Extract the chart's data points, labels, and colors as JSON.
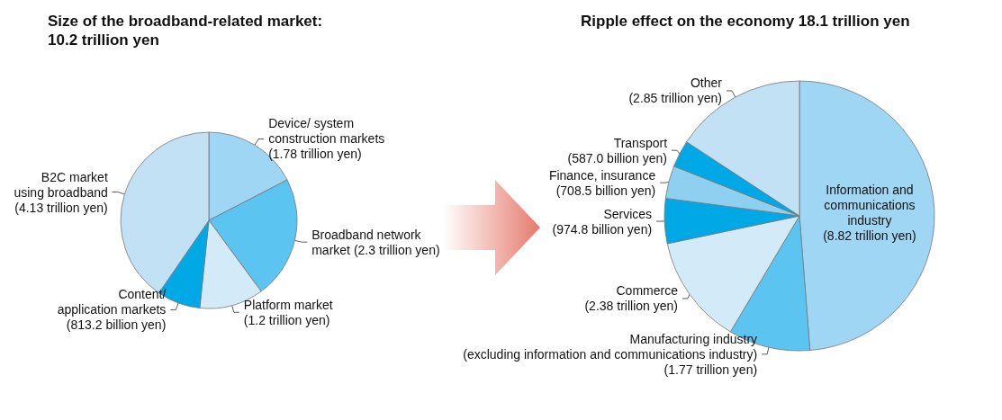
{
  "chart_data": [
    {
      "type": "pie",
      "title": "Size of the broadband-related market:\n10.2 trillion yen",
      "categories": [
        "Device/ system\nconstruction markets\n(1.78 trillion yen)",
        "Broadband network\nmarket (2.3 trillion yen)",
        "Platform market\n(1.2 trillion yen)",
        "Content/\napplication markets\n(813.2 billion yen)",
        "B2C market\nusing broadband\n(4.13 trillion yen)"
      ],
      "values": [
        1.78,
        2.3,
        1.2,
        0.8132,
        4.13
      ],
      "colors": [
        "#9fd6f3",
        "#5cc4f0",
        "#d3ebf9",
        "#00a9e6",
        "#c2e1f5"
      ]
    },
    {
      "type": "pie",
      "title": "Ripple effect on the economy 18.1 trillion yen",
      "categories": [
        "Information and\ncommunications\nindustry\n(8.82 trillion yen)",
        "Manufacturing industry\n(excluding information and communications industry)\n(1.77 trillion yen)",
        "Commerce\n(2.38 trillion yen)",
        "Services\n(974.8 billion yen)",
        "Finance, insurance\n(708.5 billion yen)",
        "Transport\n(587.0 billion yen)",
        "Other\n(2.85 trillion yen)"
      ],
      "values": [
        8.82,
        1.77,
        2.38,
        0.9748,
        0.7085,
        0.587,
        2.85
      ],
      "colors": [
        "#9fd6f3",
        "#5cc4f0",
        "#d3ebf9",
        "#00a9e6",
        "#8fd0f0",
        "#00a9e6",
        "#c2e1f5"
      ]
    }
  ]
}
